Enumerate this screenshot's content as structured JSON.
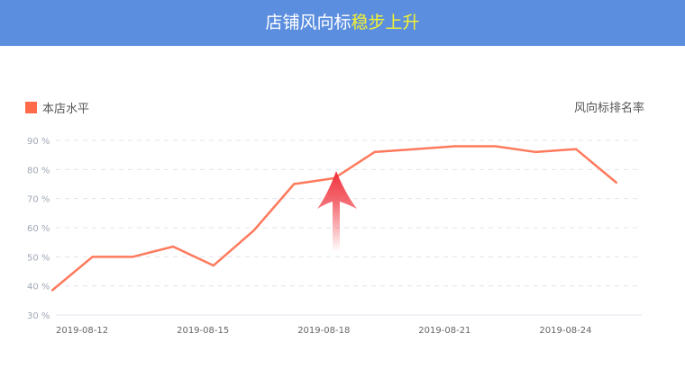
{
  "header": {
    "title_main": "店铺风向标",
    "title_highlight": "稳步上升"
  },
  "legend": {
    "label": "本店水平",
    "color": "#ff6b4a"
  },
  "right_label": "风向标排名率",
  "colors": {
    "header_bg": "#5b8ede",
    "highlight": "#f7f42e",
    "line": "#ff7a5c",
    "arrow": "#f0303a"
  },
  "chart_data": {
    "type": "line",
    "x": [
      "2019-08-12",
      "2019-08-13",
      "2019-08-14",
      "2019-08-15",
      "2019-08-16",
      "2019-08-17",
      "2019-08-18",
      "2019-08-19",
      "2019-08-20",
      "2019-08-21",
      "2019-08-22",
      "2019-08-23",
      "2019-08-24",
      "2019-08-25",
      "2019-08-26"
    ],
    "series": [
      {
        "name": "本店水平",
        "values": [
          38.5,
          50,
          50,
          53.5,
          47,
          59,
          75,
          77,
          86,
          87,
          88,
          88,
          86,
          87,
          75.5
        ]
      }
    ],
    "xticks": [
      "2019-08-12",
      "2019-08-15",
      "2019-08-18",
      "2019-08-21",
      "2019-08-24"
    ],
    "yticks": [
      "30 %",
      "40 %",
      "50 %",
      "60 %",
      "70 %",
      "80 %",
      "90 %"
    ],
    "ylim": [
      30,
      90
    ],
    "grid": true,
    "legend_position": "top-left",
    "annotation": "upward-arrow"
  }
}
